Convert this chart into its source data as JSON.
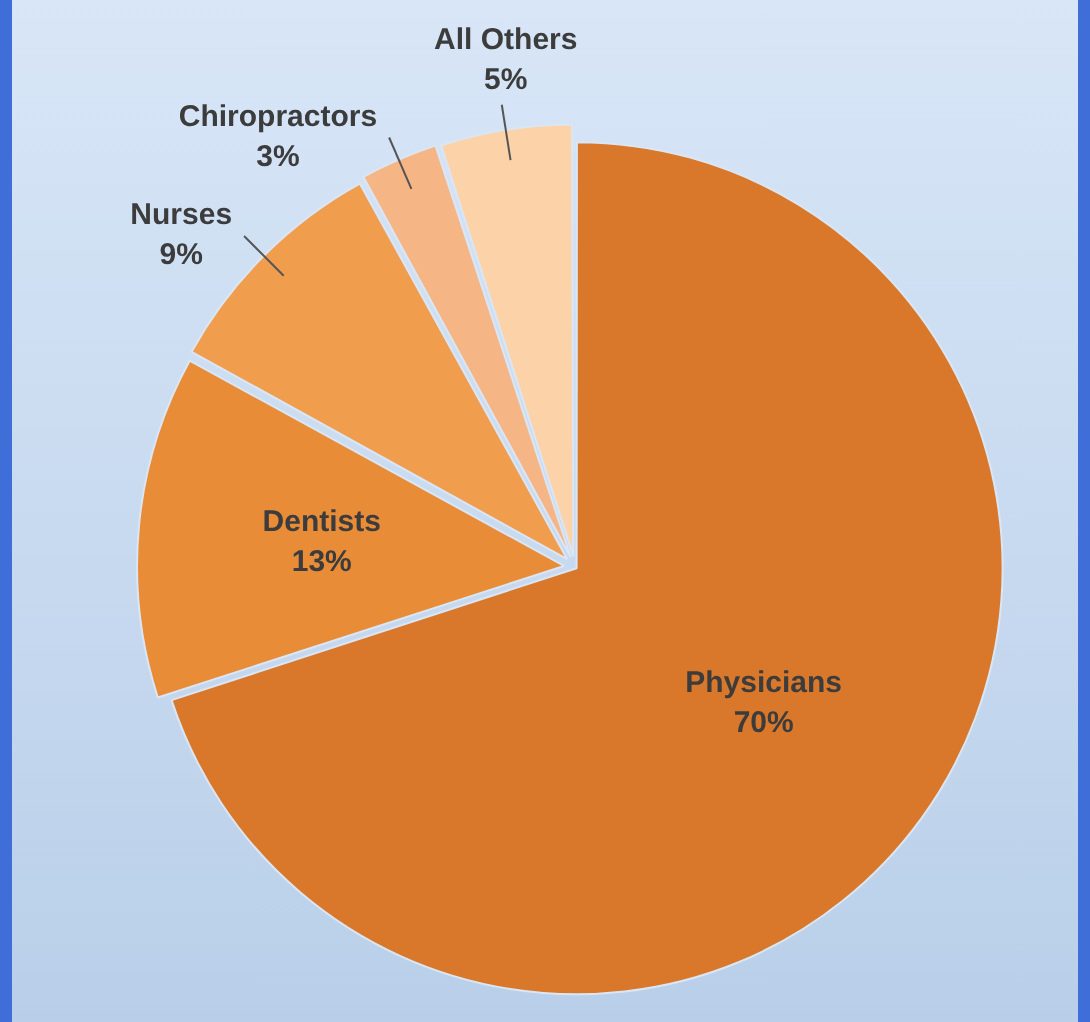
{
  "chart_data": {
    "type": "pie",
    "categories": [
      "Physicians",
      "Dentists",
      "Nurses",
      "Chiropractors",
      "All Others"
    ],
    "values": [
      70,
      13,
      9,
      3,
      5
    ],
    "value_labels": [
      "70%",
      "13%",
      "9%",
      "3%",
      "5%"
    ],
    "colors": [
      "#d9782a",
      "#e88c38",
      "#f09d4e",
      "#f5b585",
      "#fcd3a8"
    ],
    "legend": false
  }
}
